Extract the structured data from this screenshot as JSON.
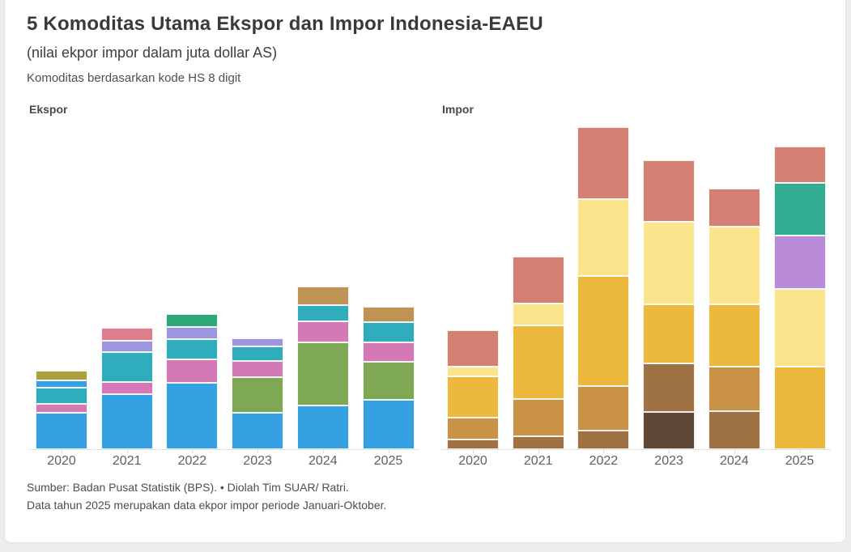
{
  "page": {
    "background_color": "#ececec",
    "card_color": "#ffffff"
  },
  "header": {
    "title": "5 Komoditas Utama Ekspor dan Impor Indonesia-EAEU",
    "subtitle": "(nilai ekpor impor dalam juta dollar AS)",
    "hs_note": "Komoditas berdasarkan kode HS 8 digit"
  },
  "footer": {
    "source_line": "Sumber: Badan Pusat Statistik (BPS). • Diolah Tim SUAR/ Ratri.",
    "data_note": "Data tahun 2025 merupakan data ekpor impor periode Januari-Oktober."
  },
  "chart_data": [
    {
      "type": "bar",
      "stacked": true,
      "title": "Ekspor",
      "categories": [
        "2020",
        "2021",
        "2022",
        "2023",
        "2024",
        "2025"
      ],
      "xlabel": "",
      "ylabel": "",
      "y_axis_labels_visible": false,
      "grid": false,
      "legend": "none",
      "value_note": "segment heights in relative units (no value axis shown in chart)",
      "bars": [
        {
          "category": "2020",
          "segments": [
            {
              "color": "#35a0e2",
              "value": 45
            },
            {
              "color": "#d578b6",
              "value": 11
            },
            {
              "color": "#2fadbd",
              "value": 20
            },
            {
              "color": "#35a0e2",
              "value": 9
            },
            {
              "color": "#a8a03a",
              "value": 12
            }
          ]
        },
        {
          "category": "2021",
          "segments": [
            {
              "color": "#35a0e2",
              "value": 68
            },
            {
              "color": "#d578b6",
              "value": 15
            },
            {
              "color": "#2fadbd",
              "value": 37
            },
            {
              "color": "#9e95e0",
              "value": 14
            },
            {
              "color": "#dd7e8c",
              "value": 16
            }
          ]
        },
        {
          "category": "2022",
          "segments": [
            {
              "color": "#35a0e2",
              "value": 82
            },
            {
              "color": "#d578b6",
              "value": 29
            },
            {
              "color": "#2fadbd",
              "value": 25
            },
            {
              "color": "#9e95e0",
              "value": 15
            },
            {
              "color": "#2ca877",
              "value": 16
            }
          ]
        },
        {
          "category": "2023",
          "segments": [
            {
              "color": "#35a0e2",
              "value": 45
            },
            {
              "color": "#7fa855",
              "value": 44
            },
            {
              "color": "#d578b6",
              "value": 20
            },
            {
              "color": "#2fadbd",
              "value": 18
            },
            {
              "color": "#9e95e0",
              "value": 10
            }
          ]
        },
        {
          "category": "2024",
          "segments": [
            {
              "color": "#35a0e2",
              "value": 54
            },
            {
              "color": "#7fa855",
              "value": 78
            },
            {
              "color": "#d578b6",
              "value": 26
            },
            {
              "color": "#2fadbd",
              "value": 20
            },
            {
              "color": "#bf9354",
              "value": 23
            }
          ]
        },
        {
          "category": "2025",
          "segments": [
            {
              "color": "#35a0e2",
              "value": 61
            },
            {
              "color": "#7fa855",
              "value": 47
            },
            {
              "color": "#d578b6",
              "value": 24
            },
            {
              "color": "#2fadbd",
              "value": 25
            },
            {
              "color": "#bf9354",
              "value": 19
            }
          ]
        }
      ]
    },
    {
      "type": "bar",
      "stacked": true,
      "title": "Impor",
      "categories": [
        "2020",
        "2021",
        "2022",
        "2023",
        "2024",
        "2025"
      ],
      "xlabel": "",
      "ylabel": "",
      "y_axis_labels_visible": false,
      "grid": false,
      "legend": "none",
      "value_note": "segment heights in relative units (no value axis shown in chart)",
      "bars": [
        {
          "category": "2020",
          "segments": [
            {
              "color": "#9e7245",
              "value": 12
            },
            {
              "color": "#c99247",
              "value": 27
            },
            {
              "color": "#ecb93e",
              "value": 51
            },
            {
              "color": "#fae48c",
              "value": 12
            },
            {
              "color": "#d48073",
              "value": 45
            }
          ]
        },
        {
          "category": "2021",
          "segments": [
            {
              "color": "#9e7245",
              "value": 16
            },
            {
              "color": "#c99247",
              "value": 46
            },
            {
              "color": "#ecb93e",
              "value": 91
            },
            {
              "color": "#fae48c",
              "value": 27
            },
            {
              "color": "#d48073",
              "value": 58
            }
          ]
        },
        {
          "category": "2022",
          "segments": [
            {
              "color": "#9e7245",
              "value": 23
            },
            {
              "color": "#c99247",
              "value": 55
            },
            {
              "color": "#ecb93e",
              "value": 136
            },
            {
              "color": "#fae48c",
              "value": 95
            },
            {
              "color": "#d48073",
              "value": 89
            }
          ]
        },
        {
          "category": "2023",
          "segments": [
            {
              "color": "#5f4936",
              "value": 46
            },
            {
              "color": "#9e7245",
              "value": 60
            },
            {
              "color": "#ecb93e",
              "value": 73
            },
            {
              "color": "#fae48c",
              "value": 102
            },
            {
              "color": "#d48073",
              "value": 76
            }
          ]
        },
        {
          "category": "2024",
          "segments": [
            {
              "color": "#9e7245",
              "value": 47
            },
            {
              "color": "#c99247",
              "value": 55
            },
            {
              "color": "#ecb93e",
              "value": 77
            },
            {
              "color": "#fae48c",
              "value": 96
            },
            {
              "color": "#d48073",
              "value": 47
            }
          ]
        },
        {
          "category": "2025",
          "segments": [
            {
              "color": "#ecb93e",
              "value": 102
            },
            {
              "color": "#fae48c",
              "value": 96
            },
            {
              "color": "#b98bd9",
              "value": 66
            },
            {
              "color": "#32ac92",
              "value": 65
            },
            {
              "color": "#d48073",
              "value": 45
            }
          ]
        }
      ]
    }
  ]
}
